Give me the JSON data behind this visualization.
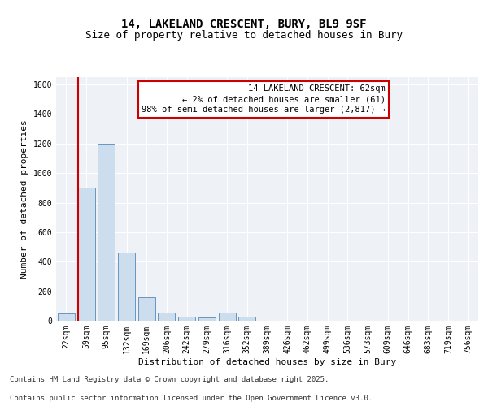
{
  "title_line1": "14, LAKELAND CRESCENT, BURY, BL9 9SF",
  "title_line2": "Size of property relative to detached houses in Bury",
  "xlabel": "Distribution of detached houses by size in Bury",
  "ylabel": "Number of detached properties",
  "bar_labels": [
    "22sqm",
    "59sqm",
    "95sqm",
    "132sqm",
    "169sqm",
    "206sqm",
    "242sqm",
    "279sqm",
    "316sqm",
    "352sqm",
    "389sqm",
    "426sqm",
    "462sqm",
    "499sqm",
    "536sqm",
    "573sqm",
    "609sqm",
    "646sqm",
    "683sqm",
    "719sqm",
    "756sqm"
  ],
  "bar_values": [
    50,
    900,
    1200,
    460,
    160,
    55,
    30,
    20,
    55,
    30,
    0,
    0,
    0,
    0,
    0,
    0,
    0,
    0,
    0,
    0,
    0
  ],
  "bar_color": "#ccdded",
  "bar_edge_color": "#5588bb",
  "red_line_x": 0.6,
  "highlight_color": "#cc0000",
  "annotation_text": "14 LAKELAND CRESCENT: 62sqm\n← 2% of detached houses are smaller (61)\n98% of semi-detached houses are larger (2,817) →",
  "annotation_box_color": "#ffffff",
  "annotation_box_edge": "#cc0000",
  "ylim": [
    0,
    1650
  ],
  "yticks": [
    0,
    200,
    400,
    600,
    800,
    1000,
    1200,
    1400,
    1600
  ],
  "bg_color": "#eef2f7",
  "grid_color": "#ffffff",
  "footer_line1": "Contains HM Land Registry data © Crown copyright and database right 2025.",
  "footer_line2": "Contains public sector information licensed under the Open Government Licence v3.0.",
  "title_fontsize": 10,
  "subtitle_fontsize": 9,
  "axis_label_fontsize": 8,
  "tick_fontsize": 7,
  "annotation_fontsize": 7.5,
  "footer_fontsize": 6.5,
  "ylabel_fontsize": 8
}
